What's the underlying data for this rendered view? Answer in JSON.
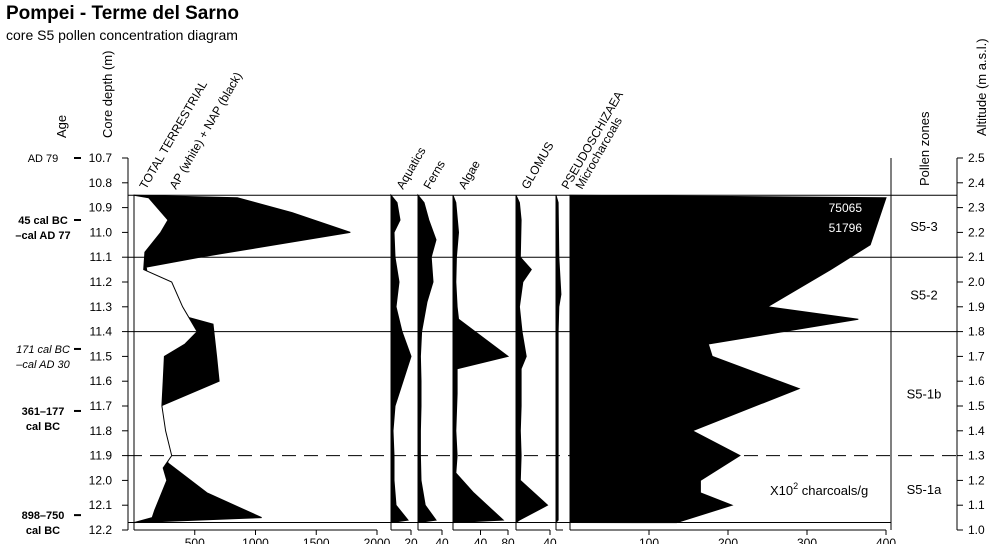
{
  "title": "Pompei - Terme del Sarno",
  "subtitle": "core S5   pollen concentration diagram",
  "chart_data": {
    "type": "area",
    "title": "Pompei - Terme del Sarno",
    "subtitle": "core S5   pollen concentration diagram",
    "depth_axis": {
      "label": "Core depth (m)",
      "range": [
        10.7,
        12.2
      ],
      "reversed": true,
      "ticks": [
        "10.7",
        "10.8",
        "10.9",
        "11.0",
        "11.1",
        "11.2",
        "11.3",
        "11.4",
        "11.5",
        "11.6",
        "11.7",
        "11.8",
        "11.9",
        "12.0",
        "12.1",
        "12.2"
      ]
    },
    "altitude_axis": {
      "label": "Altitude (m a.s.l.)",
      "range": [
        1.0,
        2.5
      ],
      "ticks": [
        "2.5",
        "2.4",
        "2.3",
        "2.2",
        "2.1",
        "2.0",
        "1.9",
        "1.8",
        "1.7",
        "1.6",
        "1.5",
        "1.4",
        "1.3",
        "1.2",
        "1.1",
        "1.0"
      ]
    },
    "age_axis": {
      "label": "Age"
    },
    "ages": [
      {
        "depth": 10.7,
        "lines": [
          "AD 79"
        ],
        "style": "normal"
      },
      {
        "depth": 10.95,
        "lines": [
          "45 cal BC",
          "–cal AD 77"
        ],
        "style": "bold"
      },
      {
        "depth": 11.47,
        "lines": [
          "171 cal BC",
          "–cal AD 30"
        ],
        "style": "italic"
      },
      {
        "depth": 11.72,
        "lines": [
          "361–177",
          "cal BC"
        ],
        "style": "bold"
      },
      {
        "depth": 12.14,
        "lines": [
          "898–750",
          "cal BC"
        ],
        "style": "bold"
      }
    ],
    "zones": {
      "label": "Pollen zones",
      "items": [
        {
          "name": "S5-3",
          "top": 10.85,
          "bottom": 11.1
        },
        {
          "name": "S5-2",
          "top": 11.1,
          "bottom": 11.4
        },
        {
          "name": "S5-1b",
          "top": 11.4,
          "bottom": 11.9
        },
        {
          "name": "S5-1a",
          "top": 11.9,
          "bottom": 12.17
        }
      ],
      "solid_boundaries": [
        10.85,
        11.1,
        11.4
      ],
      "dashed_boundaries": [
        11.9
      ],
      "base": 12.17
    },
    "panels": [
      {
        "name": "TOTAL TERRESTRIAL",
        "name2": "AP (white) + NAP (black)",
        "xlim": [
          0,
          2000
        ],
        "ticks": [
          500,
          1000,
          1500,
          2000
        ],
        "outer": [
          [
            10.86,
            850
          ],
          [
            10.92,
            1300
          ],
          [
            11.0,
            1780
          ],
          [
            11.1,
            540
          ],
          [
            11.14,
            100
          ],
          [
            11.2,
            120
          ],
          [
            11.3,
            130
          ],
          [
            11.37,
            650
          ],
          [
            11.5,
            680
          ],
          [
            11.6,
            700
          ],
          [
            11.7,
            220
          ],
          [
            11.82,
            230
          ],
          [
            11.93,
            280
          ],
          [
            12.05,
            600
          ],
          [
            12.15,
            1050
          ]
        ],
        "inner": [
          [
            10.86,
            120
          ],
          [
            10.95,
            280
          ],
          [
            11.0,
            220
          ],
          [
            11.08,
            90
          ],
          [
            11.15,
            80
          ],
          [
            11.2,
            310
          ],
          [
            11.3,
            400
          ],
          [
            11.4,
            520
          ],
          [
            11.45,
            420
          ],
          [
            11.5,
            250
          ],
          [
            11.6,
            240
          ],
          [
            11.7,
            230
          ],
          [
            11.8,
            260
          ],
          [
            11.9,
            310
          ],
          [
            11.95,
            240
          ],
          [
            12.0,
            270
          ],
          [
            12.12,
            170
          ],
          [
            12.15,
            150
          ]
        ]
      },
      {
        "name": "Aquatics",
        "xlim": [
          0,
          20
        ],
        "ticks": [
          20
        ],
        "outer": [
          [
            10.88,
            6
          ],
          [
            10.95,
            9
          ],
          [
            11.0,
            3
          ],
          [
            11.1,
            4
          ],
          [
            11.2,
            8
          ],
          [
            11.3,
            5
          ],
          [
            11.4,
            11
          ],
          [
            11.5,
            20
          ],
          [
            11.6,
            12
          ],
          [
            11.7,
            4
          ],
          [
            11.8,
            2
          ],
          [
            11.9,
            3
          ],
          [
            12.0,
            3
          ],
          [
            12.1,
            5
          ],
          [
            12.16,
            17
          ]
        ]
      },
      {
        "name": "Ferns",
        "xlim": [
          0,
          40
        ],
        "ticks": [
          40
        ],
        "outer": [
          [
            10.88,
            10
          ],
          [
            10.95,
            18
          ],
          [
            11.03,
            30
          ],
          [
            11.1,
            22
          ],
          [
            11.2,
            25
          ],
          [
            11.28,
            15
          ],
          [
            11.4,
            6
          ],
          [
            11.5,
            4
          ],
          [
            11.6,
            5
          ],
          [
            11.7,
            5
          ],
          [
            11.8,
            4
          ],
          [
            11.9,
            4
          ],
          [
            12.0,
            5
          ],
          [
            12.1,
            12
          ],
          [
            12.16,
            30
          ]
        ]
      },
      {
        "name": "Algae",
        "xlim": [
          0,
          80
        ],
        "ticks": [
          40,
          80
        ],
        "outer": [
          [
            10.88,
            4
          ],
          [
            11.0,
            8
          ],
          [
            11.1,
            5
          ],
          [
            11.2,
            4
          ],
          [
            11.3,
            6
          ],
          [
            11.35,
            8
          ],
          [
            11.5,
            80
          ],
          [
            11.55,
            6
          ],
          [
            11.65,
            6
          ],
          [
            11.8,
            4
          ],
          [
            11.9,
            6
          ],
          [
            11.97,
            4
          ],
          [
            12.05,
            30
          ],
          [
            12.16,
            73
          ]
        ]
      },
      {
        "name": "GLOMUS",
        "xlim": [
          0,
          40
        ],
        "ticks": [
          40
        ],
        "outer": [
          [
            10.88,
            4
          ],
          [
            10.95,
            6
          ],
          [
            11.1,
            5
          ],
          [
            11.15,
            18
          ],
          [
            11.2,
            8
          ],
          [
            11.3,
            4
          ],
          [
            11.4,
            7
          ],
          [
            11.5,
            12
          ],
          [
            11.55,
            6
          ],
          [
            11.7,
            6
          ],
          [
            11.8,
            5
          ],
          [
            11.9,
            6
          ],
          [
            12.0,
            5
          ],
          [
            12.1,
            37
          ],
          [
            12.16,
            4
          ]
        ]
      },
      {
        "name": "PSEUDOSCHIZAEA",
        "xlim": [
          0,
          10
        ],
        "ticks": [],
        "outer": [
          [
            10.88,
            3
          ],
          [
            11.1,
            4
          ],
          [
            11.25,
            7
          ],
          [
            11.3,
            4
          ],
          [
            11.4,
            3
          ],
          [
            12.16,
            3
          ]
        ]
      },
      {
        "name": "Microcharcoals",
        "xlim": [
          0,
          400
        ],
        "ticks": [
          100,
          200,
          300,
          400
        ],
        "unit_label": "X10",
        "unit_exp": "2",
        "unit_rest": " charcoals/g",
        "values_printed": [
          "75065",
          "51796"
        ],
        "outer": [
          [
            10.86,
            400
          ],
          [
            11.05,
            380
          ],
          [
            11.15,
            330
          ],
          [
            11.3,
            250
          ],
          [
            11.35,
            365
          ],
          [
            11.45,
            175
          ],
          [
            11.5,
            180
          ],
          [
            11.63,
            290
          ],
          [
            11.8,
            155
          ],
          [
            11.9,
            215
          ],
          [
            12.0,
            165
          ],
          [
            12.05,
            165
          ],
          [
            12.1,
            205
          ],
          [
            12.17,
            135
          ]
        ]
      }
    ]
  }
}
